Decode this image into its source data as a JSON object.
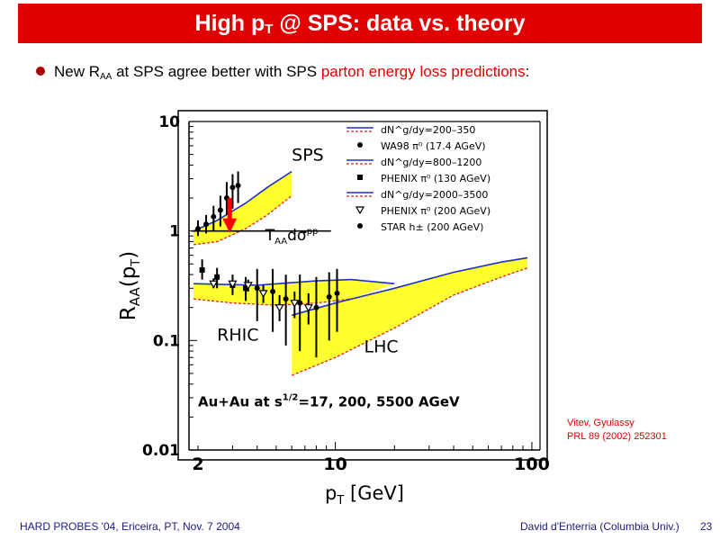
{
  "slide": {
    "title_pre": "High p",
    "title_sub": "T",
    "title_post": " @ SPS: data vs. theory",
    "bullet_pre": "New R",
    "bullet_sub": "AA",
    "bullet_mid": " at SPS agree better with SPS ",
    "bullet_red": "parton energy loss predictions",
    "bullet_end": ":",
    "credit_line1": "Vitev, Gyulassy",
    "credit_line2": "PRL 89 (2002) 252301",
    "footer_left": "HARD PROBES '04, Ericeira, PT, Nov. 7 2004",
    "footer_right": "David d'Enterria (Columbia Univ.)",
    "page_number": "23"
  },
  "chart_data": {
    "type": "line",
    "xlabel": "pT [GeV]",
    "ylabel": "RAA(pT)",
    "x_scale": "log",
    "y_scale": "log",
    "xlim": [
      1.8,
      110
    ],
    "ylim": [
      0.01,
      10
    ],
    "x_ticks": [
      {
        "v": 2,
        "label": "2"
      },
      {
        "v": 10,
        "label": "10"
      },
      {
        "v": 100,
        "label": "100"
      }
    ],
    "y_ticks": [
      {
        "v": 10,
        "label": "10"
      },
      {
        "v": 1,
        "label": "1"
      },
      {
        "v": 0.1,
        "label": "0.1"
      },
      {
        "v": 0.01,
        "label": "0.01"
      }
    ],
    "colors": {
      "upper": "#2030c0",
      "lower": "#e02020",
      "band": "#ffff30",
      "arrow": "#ff0000"
    },
    "annotations": [
      {
        "text": "SPS",
        "x": 6,
        "y": 4.4
      },
      {
        "text": "RHIC",
        "x": 2.5,
        "y": 0.1
      },
      {
        "text": "LHC",
        "x": 14,
        "y": 0.078
      },
      {
        "text": "Au+Au at s^1/2=17, 200, 5500 AGeV",
        "x": 2.0,
        "y": 0.025
      }
    ],
    "reference_label": "TAA dσpp",
    "reference_y": 1,
    "legend": [
      {
        "label": "dN^g/dy=200–350",
        "kind": "band"
      },
      {
        "label": "WA98 π⁰ (17.4 AGeV)",
        "kind": "star"
      },
      {
        "label": "dN^g/dy=800–1200",
        "kind": "band"
      },
      {
        "label": "PHENIX π⁰ (130 AGeV)",
        "kind": "square"
      },
      {
        "label": "dN^g/dy=2000–3500",
        "kind": "band"
      },
      {
        "label": "PHENIX π⁰ (200 AGeV)",
        "kind": "triangle"
      },
      {
        "label": "STAR h± (200 AGeV)",
        "kind": "star"
      }
    ],
    "series": [
      {
        "name": "dN^g/dy=200–350",
        "upper": [
          [
            1.9,
            1.0
          ],
          [
            2.5,
            1.25
          ],
          [
            3.5,
            1.8
          ],
          [
            4.5,
            2.5
          ],
          [
            6.0,
            3.5
          ]
        ],
        "lower": [
          [
            1.9,
            0.75
          ],
          [
            2.5,
            0.8
          ],
          [
            3.5,
            1.05
          ],
          [
            4.5,
            1.4
          ],
          [
            6.0,
            2.1
          ]
        ]
      },
      {
        "name": "dN^g/dy=800–1200",
        "upper": [
          [
            1.9,
            0.33
          ],
          [
            4,
            0.32
          ],
          [
            8,
            0.35
          ],
          [
            12,
            0.36
          ],
          [
            20,
            0.33
          ]
        ],
        "lower": [
          [
            1.9,
            0.24
          ],
          [
            3,
            0.22
          ],
          [
            5,
            0.21
          ],
          [
            8,
            0.22
          ],
          [
            12,
            0.24
          ]
        ]
      },
      {
        "name": "dN^g/dy=2000–3500",
        "upper": [
          [
            6,
            0.17
          ],
          [
            10,
            0.22
          ],
          [
            20,
            0.3
          ],
          [
            40,
            0.42
          ],
          [
            70,
            0.52
          ],
          [
            95,
            0.57
          ]
        ],
        "lower": [
          [
            6,
            0.048
          ],
          [
            10,
            0.07
          ],
          [
            20,
            0.13
          ],
          [
            40,
            0.26
          ],
          [
            70,
            0.38
          ],
          [
            95,
            0.46
          ]
        ]
      }
    ],
    "data_points": [
      {
        "x": 2.0,
        "y": 1.05,
        "lo": 0.9,
        "hi": 1.25,
        "marker": "star"
      },
      {
        "x": 2.2,
        "y": 1.15,
        "lo": 0.95,
        "hi": 1.4,
        "marker": "star"
      },
      {
        "x": 2.4,
        "y": 1.35,
        "lo": 1.0,
        "hi": 1.7,
        "marker": "star"
      },
      {
        "x": 2.6,
        "y": 1.55,
        "lo": 1.1,
        "hi": 2.1,
        "marker": "star"
      },
      {
        "x": 2.8,
        "y": 2.0,
        "lo": 1.4,
        "hi": 2.8,
        "marker": "star"
      },
      {
        "x": 3.0,
        "y": 2.5,
        "lo": 1.6,
        "hi": 3.3,
        "marker": "star"
      },
      {
        "x": 3.2,
        "y": 2.6,
        "lo": 1.8,
        "hi": 3.5,
        "marker": "star"
      },
      {
        "x": 2.1,
        "y": 0.44,
        "lo": 0.36,
        "hi": 0.55,
        "marker": "square"
      },
      {
        "x": 2.5,
        "y": 0.38,
        "lo": 0.3,
        "hi": 0.46,
        "marker": "square"
      },
      {
        "x": 3.0,
        "y": 0.32,
        "lo": 0.26,
        "hi": 0.4,
        "marker": "square"
      },
      {
        "x": 3.5,
        "y": 0.3,
        "lo": 0.23,
        "hi": 0.38,
        "marker": "square"
      },
      {
        "x": 2.4,
        "y": 0.33,
        "lo": 0.3,
        "hi": 0.37,
        "marker": "triangle"
      },
      {
        "x": 3.0,
        "y": 0.33,
        "lo": 0.3,
        "hi": 0.36,
        "marker": "triangle"
      },
      {
        "x": 3.6,
        "y": 0.32,
        "lo": 0.28,
        "hi": 0.36,
        "marker": "triangle"
      },
      {
        "x": 4.3,
        "y": 0.27,
        "lo": 0.22,
        "hi": 0.32,
        "marker": "triangle"
      },
      {
        "x": 5.2,
        "y": 0.2,
        "lo": 0.15,
        "hi": 0.26,
        "marker": "triangle"
      },
      {
        "x": 6.2,
        "y": 0.22,
        "lo": 0.16,
        "hi": 0.28,
        "marker": "triangle"
      },
      {
        "x": 7.3,
        "y": 0.2,
        "lo": 0.14,
        "hi": 0.27,
        "marker": "triangle"
      },
      {
        "x": 4.0,
        "y": 0.3,
        "lo": 0.15,
        "hi": 0.45,
        "marker": "star"
      },
      {
        "x": 4.8,
        "y": 0.28,
        "lo": 0.12,
        "hi": 0.45,
        "marker": "star"
      },
      {
        "x": 5.6,
        "y": 0.24,
        "lo": 0.09,
        "hi": 0.4,
        "marker": "star"
      },
      {
        "x": 6.6,
        "y": 0.22,
        "lo": 0.08,
        "hi": 0.4,
        "marker": "star"
      },
      {
        "x": 8.0,
        "y": 0.2,
        "lo": 0.07,
        "hi": 0.38,
        "marker": "star"
      },
      {
        "x": 9.3,
        "y": 0.25,
        "lo": 0.1,
        "hi": 0.42,
        "marker": "star"
      },
      {
        "x": 10.2,
        "y": 0.27,
        "lo": 0.12,
        "hi": 0.45,
        "marker": "star"
      }
    ]
  }
}
